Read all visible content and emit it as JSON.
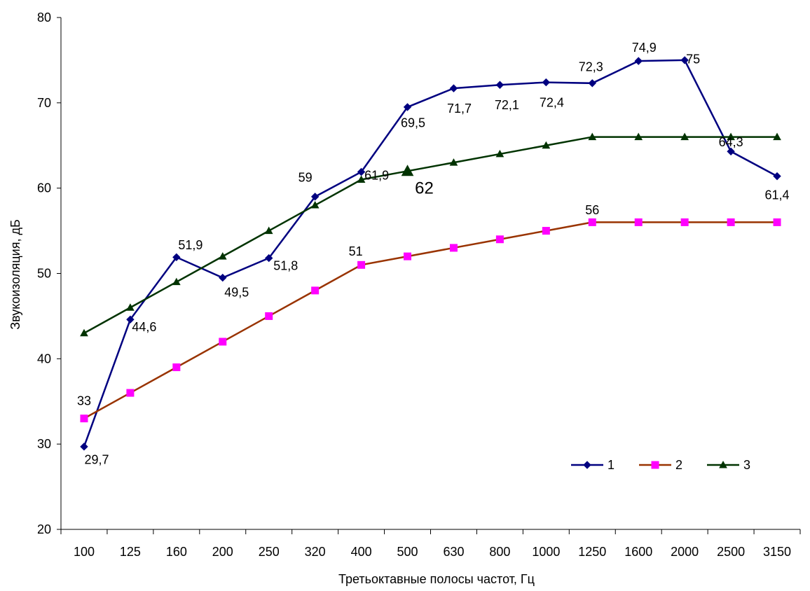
{
  "chart_data": {
    "type": "line",
    "xlabel": "Третьоктавные полосы частот, Гц",
    "ylabel": "Звукоизоляция, дБ",
    "ylim": [
      20,
      80
    ],
    "yticks": [
      20,
      30,
      40,
      50,
      60,
      70,
      80
    ],
    "grid": false,
    "legend_position": "bottom-right",
    "categories": [
      "100",
      "125",
      "160",
      "200",
      "250",
      "320",
      "400",
      "500",
      "630",
      "800",
      "1000",
      "1250",
      "1600",
      "2000",
      "2500",
      "3150"
    ],
    "series": [
      {
        "name": "1",
        "color": "#000080",
        "line_color": "#000080",
        "marker": "diamond",
        "values": [
          29.7,
          44.6,
          51.9,
          49.5,
          51.8,
          59,
          61.9,
          69.5,
          71.7,
          72.1,
          72.4,
          72.3,
          74.9,
          75,
          64.3,
          61.4
        ],
        "labels": [
          {
            "index": 0,
            "text": "29,7"
          },
          {
            "index": 1,
            "text": "44,6"
          },
          {
            "index": 2,
            "text": "51,9"
          },
          {
            "index": 3,
            "text": "49,5"
          },
          {
            "index": 4,
            "text": "51,8"
          },
          {
            "index": 5,
            "text": "59"
          },
          {
            "index": 6,
            "text": "61,9"
          },
          {
            "index": 7,
            "text": "69,5"
          },
          {
            "index": 8,
            "text": "71,7"
          },
          {
            "index": 9,
            "text": "72,1"
          },
          {
            "index": 10,
            "text": "72,4"
          },
          {
            "index": 11,
            "text": "72,3"
          },
          {
            "index": 12,
            "text": "74,9"
          },
          {
            "index": 13,
            "text": "75"
          },
          {
            "index": 14,
            "text": "64,3"
          },
          {
            "index": 15,
            "text": "61,4"
          }
        ]
      },
      {
        "name": "2",
        "color": "#ff00ff",
        "line_color": "#993300",
        "marker": "square",
        "values": [
          33,
          36,
          39,
          42,
          45,
          48,
          51,
          52,
          53,
          54,
          55,
          56,
          56,
          56,
          56,
          56
        ],
        "labels": [
          {
            "index": 0,
            "text": "33"
          },
          {
            "index": 6,
            "text": "51"
          },
          {
            "index": 11,
            "text": "56"
          }
        ]
      },
      {
        "name": "3",
        "color": "#003300",
        "line_color": "#003300",
        "marker": "triangle",
        "values": [
          43,
          46,
          49,
          52,
          55,
          58,
          61,
          62,
          63,
          64,
          65,
          66,
          66,
          66,
          66,
          66
        ],
        "labels": [
          {
            "index": 7,
            "text": "62",
            "emphasis": true
          }
        ]
      }
    ]
  }
}
